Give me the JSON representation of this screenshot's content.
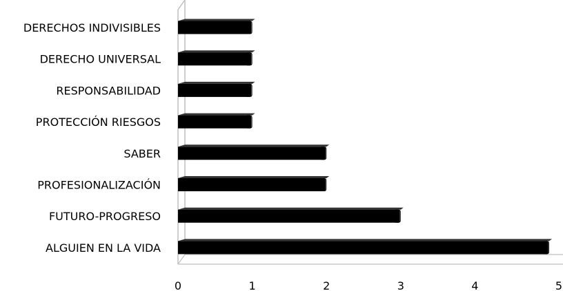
{
  "chart_data": {
    "type": "bar",
    "orientation": "horizontal",
    "style": "3d",
    "categories": [
      "DERECHOS INDIVISIBLES",
      "DERECHO UNIVERSAL",
      "RESPONSABILIDAD",
      "PROTECCIÓN RIESGOS",
      "SABER",
      "PROFESIONALIZACIÓN",
      "FUTURO-PROGRESO",
      "ALGUIEN EN LA VIDA"
    ],
    "values": [
      1,
      1,
      1,
      1,
      2,
      2,
      3,
      5
    ],
    "xlim": [
      0,
      5
    ],
    "xticks": [
      "0",
      "1",
      "2",
      "3",
      "4",
      "5"
    ],
    "title": "",
    "xlabel": "",
    "ylabel": "",
    "grid": false,
    "legend": "none",
    "colors": {
      "bar": "#000000",
      "axis": "#bfbfbf",
      "text": "#000000",
      "background": "#ffffff"
    }
  }
}
